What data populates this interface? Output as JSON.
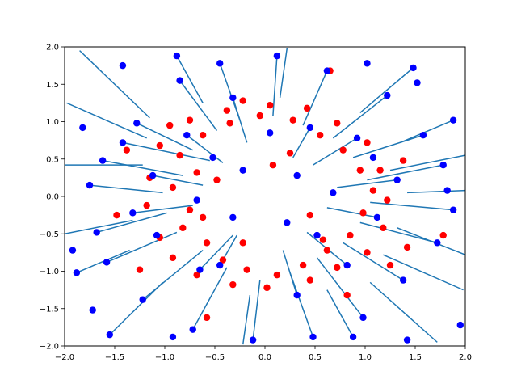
{
  "chart_data": {
    "type": "scatter",
    "title": "",
    "xlabel": "",
    "ylabel": "",
    "xlim": [
      -2.0,
      2.0
    ],
    "ylim": [
      -2.0,
      2.0
    ],
    "x_ticks": [
      -2.0,
      -1.5,
      -1.0,
      -0.5,
      0.0,
      0.5,
      1.0,
      1.5,
      2.0
    ],
    "y_ticks": [
      -2.0,
      -1.5,
      -1.0,
      -0.5,
      0.0,
      0.5,
      1.0,
      1.5,
      2.0
    ],
    "x_tick_labels": [
      "−2.0",
      "−1.5",
      "−1.0",
      "−0.5",
      "0.0",
      "0.5",
      "1.0",
      "1.5",
      "2.0"
    ],
    "y_tick_labels": [
      "−2.0",
      "−1.5",
      "−1.0",
      "−0.5",
      "0.0",
      "0.5",
      "1.0",
      "1.5",
      "2.0"
    ],
    "grid": false,
    "legend": "none",
    "colors": {
      "line": "#1f77b4",
      "red": "#ff0000",
      "blue": "#0000ff"
    },
    "series": [
      {
        "kind": "line-segments",
        "from": "red",
        "to": "blue",
        "pairs": [
          [
            [
              -0.72,
              0.62
            ],
            [
              -1.28,
              0.98
            ]
          ],
          [
            [
              -0.55,
              0.48
            ],
            [
              -1.42,
              0.72
            ]
          ],
          [
            [
              -0.82,
              0.28
            ],
            [
              -1.62,
              0.48
            ]
          ],
          [
            [
              -1.02,
              0.05
            ],
            [
              -1.75,
              0.15
            ]
          ],
          [
            [
              -0.98,
              -0.22
            ],
            [
              -1.68,
              -0.48
            ]
          ],
          [
            [
              -0.88,
              -0.48
            ],
            [
              -1.58,
              -0.88
            ]
          ],
          [
            [
              -0.62,
              -0.72
            ],
            [
              -1.22,
              -1.38
            ]
          ],
          [
            [
              -0.38,
              -0.95
            ],
            [
              -0.72,
              -1.78
            ]
          ],
          [
            [
              -0.05,
              -1.12
            ],
            [
              -0.12,
              -1.92
            ]
          ],
          [
            [
              0.25,
              -1.02
            ],
            [
              0.48,
              -1.88
            ]
          ],
          [
            [
              0.52,
              -0.82
            ],
            [
              0.98,
              -1.62
            ]
          ],
          [
            [
              0.78,
              -0.62
            ],
            [
              1.38,
              -1.12
            ]
          ],
          [
            [
              0.95,
              -0.35
            ],
            [
              1.72,
              -0.62
            ]
          ],
          [
            [
              1.05,
              -0.08
            ],
            [
              1.88,
              -0.18
            ]
          ],
          [
            [
              1.02,
              0.22
            ],
            [
              1.78,
              0.42
            ]
          ],
          [
            [
              0.88,
              0.52
            ],
            [
              1.58,
              0.82
            ]
          ],
          [
            [
              0.68,
              0.78
            ],
            [
              1.22,
              1.35
            ]
          ],
          [
            [
              0.38,
              0.95
            ],
            [
              0.62,
              1.68
            ]
          ],
          [
            [
              0.08,
              1.08
            ],
            [
              0.12,
              1.88
            ]
          ],
          [
            [
              -0.25,
              1.02
            ],
            [
              -0.45,
              1.78
            ]
          ],
          [
            [
              -0.48,
              0.88
            ],
            [
              -0.85,
              1.55
            ]
          ],
          [
            [
              -1.22,
              0.42
            ],
            [
              -2.0,
              0.42
            ]
          ],
          [
            [
              -1.32,
              -0.32
            ],
            [
              -2.0,
              -0.5
            ]
          ],
          [
            [
              1.32,
              -0.42
            ],
            [
              2.0,
              -0.78
            ]
          ],
          [
            [
              1.25,
              0.35
            ],
            [
              2.0,
              0.55
            ]
          ],
          [
            [
              -0.32,
              -0.52
            ],
            [
              -0.65,
              -0.98
            ]
          ],
          [
            [
              0.42,
              -0.48
            ],
            [
              0.82,
              -0.92
            ]
          ],
          [
            [
              0.48,
              0.42
            ],
            [
              0.92,
              0.78
            ]
          ],
          [
            [
              -0.42,
              0.45
            ],
            [
              -0.78,
              0.82
            ]
          ],
          [
            [
              0.18,
              -0.72
            ],
            [
              0.32,
              -1.32
            ]
          ],
          [
            [
              -0.18,
              0.72
            ],
            [
              -0.32,
              1.32
            ]
          ],
          [
            [
              -0.72,
              -0.12
            ],
            [
              -1.32,
              -0.22
            ]
          ],
          [
            [
              0.72,
              0.12
            ],
            [
              1.32,
              0.22
            ]
          ],
          [
            [
              -1.15,
              1.05
            ],
            [
              -1.85,
              1.95
            ]
          ],
          [
            [
              1.05,
              -1.15
            ],
            [
              1.72,
              -1.95
            ]
          ],
          [
            [
              0.95,
              1.12
            ],
            [
              1.48,
              1.72
            ]
          ],
          [
            [
              -1.02,
              -1.15
            ],
            [
              -1.55,
              -1.85
            ]
          ],
          [
            [
              0.62,
              -1.25
            ],
            [
              0.88,
              -1.88
            ]
          ],
          [
            [
              -0.62,
              1.25
            ],
            [
              -0.88,
              1.88
            ]
          ],
          [
            [
              1.35,
              0.72
            ],
            [
              1.88,
              1.02
            ]
          ],
          [
            [
              -1.35,
              -0.72
            ],
            [
              -1.88,
              -1.02
            ]
          ],
          [
            [
              0.28,
              0.52
            ],
            [
              0.45,
              0.92
            ]
          ],
          [
            [
              -0.28,
              -0.52
            ],
            [
              -0.45,
              -0.92
            ]
          ],
          [
            [
              -0.62,
              0.15
            ],
            [
              -1.12,
              0.28
            ]
          ],
          [
            [
              0.62,
              -0.15
            ],
            [
              1.12,
              -0.28
            ]
          ],
          [
            [
              1.18,
              -0.78
            ],
            [
              1.98,
              -1.25
            ]
          ],
          [
            [
              -1.18,
              0.78
            ],
            [
              -1.98,
              1.25
            ]
          ],
          [
            [
              0.15,
              1.32
            ],
            [
              0.22,
              1.98
            ]
          ],
          [
            [
              -0.15,
              -1.32
            ],
            [
              -0.22,
              -1.98
            ]
          ],
          [
            [
              1.42,
              0.05
            ],
            [
              2.0,
              0.08
            ]
          ]
        ]
      },
      {
        "kind": "points",
        "color": "red",
        "points": [
          [
            -0.85,
            0.55
          ],
          [
            -0.68,
            0.32
          ],
          [
            -0.92,
            0.12
          ],
          [
            -0.75,
            -0.18
          ],
          [
            -0.82,
            -0.42
          ],
          [
            -0.58,
            -0.62
          ],
          [
            -0.42,
            -0.85
          ],
          [
            -0.18,
            -0.98
          ],
          [
            0.12,
            -1.05
          ],
          [
            0.38,
            -0.92
          ],
          [
            0.62,
            -0.72
          ],
          [
            0.85,
            -0.52
          ],
          [
            0.98,
            -0.22
          ],
          [
            1.08,
            0.08
          ],
          [
            0.95,
            0.35
          ],
          [
            0.78,
            0.62
          ],
          [
            0.55,
            0.82
          ],
          [
            0.28,
            1.02
          ],
          [
            -0.05,
            1.08
          ],
          [
            -0.35,
            0.98
          ],
          [
            -0.62,
            0.82
          ],
          [
            -1.05,
            0.68
          ],
          [
            -1.15,
            0.25
          ],
          [
            -1.18,
            -0.12
          ],
          [
            -1.05,
            -0.55
          ],
          [
            -0.92,
            -0.82
          ],
          [
            -0.68,
            -1.05
          ],
          [
            -0.32,
            -1.18
          ],
          [
            0.02,
            -1.22
          ],
          [
            0.45,
            -1.12
          ],
          [
            0.72,
            -0.95
          ],
          [
            1.02,
            -0.75
          ],
          [
            1.18,
            -0.42
          ],
          [
            1.22,
            -0.05
          ],
          [
            1.15,
            0.35
          ],
          [
            1.02,
            0.72
          ],
          [
            0.72,
            0.98
          ],
          [
            0.42,
            1.18
          ],
          [
            0.05,
            1.22
          ],
          [
            -0.38,
            1.15
          ],
          [
            -0.75,
            1.02
          ],
          [
            -0.48,
            0.22
          ],
          [
            0.45,
            -0.25
          ],
          [
            -0.22,
            -0.62
          ],
          [
            0.25,
            0.58
          ],
          [
            0.65,
            1.68
          ],
          [
            -0.58,
            -1.62
          ],
          [
            1.42,
            -0.68
          ],
          [
            -1.38,
            0.62
          ],
          [
            1.78,
            -0.52
          ],
          [
            -0.22,
            1.28
          ],
          [
            0.82,
            -1.32
          ],
          [
            1.25,
            -0.92
          ],
          [
            -1.25,
            -0.98
          ],
          [
            0.08,
            0.42
          ],
          [
            -0.95,
            0.95
          ],
          [
            1.38,
            0.48
          ],
          [
            -1.48,
            -0.25
          ],
          [
            0.58,
            -0.58
          ],
          [
            -0.62,
            -0.28
          ]
        ]
      },
      {
        "kind": "points",
        "color": "blue",
        "points": [
          [
            -1.28,
            0.98
          ],
          [
            -1.42,
            0.72
          ],
          [
            -1.62,
            0.48
          ],
          [
            -1.75,
            0.15
          ],
          [
            -1.68,
            -0.48
          ],
          [
            -1.58,
            -0.88
          ],
          [
            -1.22,
            -1.38
          ],
          [
            -0.72,
            -1.78
          ],
          [
            -0.12,
            -1.92
          ],
          [
            0.48,
            -1.88
          ],
          [
            0.98,
            -1.62
          ],
          [
            1.38,
            -1.12
          ],
          [
            1.72,
            -0.62
          ],
          [
            1.88,
            -0.18
          ],
          [
            1.78,
            0.42
          ],
          [
            1.58,
            0.82
          ],
          [
            1.22,
            1.35
          ],
          [
            0.62,
            1.68
          ],
          [
            0.12,
            1.88
          ],
          [
            -0.45,
            1.78
          ],
          [
            -0.85,
            1.55
          ],
          [
            -0.65,
            -0.98
          ],
          [
            0.82,
            -0.92
          ],
          [
            0.92,
            0.78
          ],
          [
            -0.78,
            0.82
          ],
          [
            0.32,
            -1.32
          ],
          [
            -0.32,
            1.32
          ],
          [
            -1.32,
            -0.22
          ],
          [
            1.32,
            0.22
          ],
          [
            1.48,
            1.72
          ],
          [
            -1.55,
            -1.85
          ],
          [
            0.88,
            -1.88
          ],
          [
            -0.88,
            1.88
          ],
          [
            1.88,
            1.02
          ],
          [
            -1.88,
            -1.02
          ],
          [
            0.45,
            0.92
          ],
          [
            -0.45,
            -0.92
          ],
          [
            -1.12,
            0.28
          ],
          [
            1.12,
            -0.28
          ],
          [
            -1.82,
            0.92
          ],
          [
            -1.72,
            -1.52
          ],
          [
            1.02,
            1.78
          ],
          [
            -1.42,
            1.75
          ],
          [
            1.95,
            -1.72
          ],
          [
            1.52,
            1.52
          ],
          [
            -1.92,
            -0.72
          ],
          [
            0.05,
            0.85
          ],
          [
            -0.92,
            -1.88
          ],
          [
            1.42,
            -1.92
          ],
          [
            1.82,
            0.08
          ],
          [
            -0.52,
            0.52
          ],
          [
            0.52,
            -0.52
          ],
          [
            -0.22,
            0.35
          ],
          [
            0.22,
            -0.35
          ],
          [
            0.32,
            0.28
          ],
          [
            -0.32,
            -0.28
          ],
          [
            0.68,
            0.05
          ],
          [
            -0.68,
            -0.05
          ],
          [
            1.08,
            0.52
          ],
          [
            -1.08,
            -0.52
          ]
        ]
      }
    ]
  }
}
